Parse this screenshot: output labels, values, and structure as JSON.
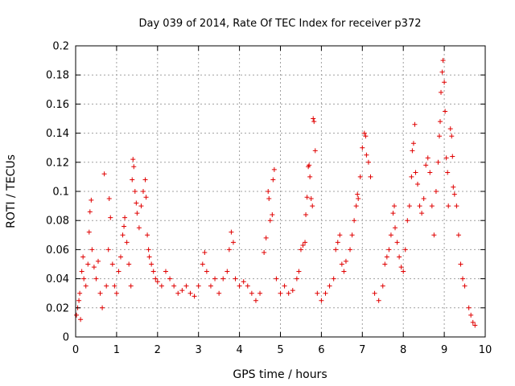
{
  "chart_data": {
    "type": "scatter",
    "title": "Day 039 of 2014, Rate Of TEC Index for receiver p372",
    "xlabel": "GPS time / hours",
    "ylabel": "ROTI / TECUs",
    "xlim": [
      0,
      10
    ],
    "ylim": [
      0,
      0.2
    ],
    "xticks": [
      0,
      1,
      2,
      3,
      4,
      5,
      6,
      7,
      8,
      9,
      10
    ],
    "yticks": [
      0,
      0.02,
      0.04,
      0.06,
      0.08,
      0.1,
      0.12,
      0.14,
      0.16,
      0.18,
      0.2
    ],
    "xtick_labels": [
      "0",
      "1",
      "2",
      "3",
      "4",
      "5",
      "6",
      "7",
      "8",
      "9",
      "10"
    ],
    "ytick_labels": [
      "0",
      "0.02",
      "0.04",
      "0.06",
      "0.08",
      "0.1",
      "0.12",
      "0.14",
      "0.16",
      "0.18",
      "0.2"
    ],
    "grid": true,
    "marker": "+",
    "color": "#e00000",
    "series": [
      {
        "name": "ROTI",
        "points": [
          [
            0.02,
            0.015
          ],
          [
            0.05,
            0.02
          ],
          [
            0.08,
            0.025
          ],
          [
            0.1,
            0.03
          ],
          [
            0.12,
            0.012
          ],
          [
            0.15,
            0.045
          ],
          [
            0.18,
            0.055
          ],
          [
            0.2,
            0.04
          ],
          [
            0.25,
            0.035
          ],
          [
            0.3,
            0.05
          ],
          [
            0.33,
            0.072
          ],
          [
            0.35,
            0.086
          ],
          [
            0.38,
            0.094
          ],
          [
            0.4,
            0.06
          ],
          [
            0.45,
            0.048
          ],
          [
            0.5,
            0.04
          ],
          [
            0.55,
            0.052
          ],
          [
            0.6,
            0.03
          ],
          [
            0.65,
            0.02
          ],
          [
            0.7,
            0.112
          ],
          [
            0.75,
            0.035
          ],
          [
            0.8,
            0.06
          ],
          [
            0.82,
            0.095
          ],
          [
            0.85,
            0.082
          ],
          [
            0.9,
            0.05
          ],
          [
            0.95,
            0.035
          ],
          [
            1.0,
            0.03
          ],
          [
            1.05,
            0.045
          ],
          [
            1.1,
            0.055
          ],
          [
            1.15,
            0.07
          ],
          [
            1.18,
            0.076
          ],
          [
            1.2,
            0.082
          ],
          [
            1.25,
            0.065
          ],
          [
            1.3,
            0.05
          ],
          [
            1.35,
            0.035
          ],
          [
            1.38,
            0.108
          ],
          [
            1.4,
            0.122
          ],
          [
            1.42,
            0.117
          ],
          [
            1.45,
            0.1
          ],
          [
            1.48,
            0.092
          ],
          [
            1.5,
            0.085
          ],
          [
            1.55,
            0.075
          ],
          [
            1.6,
            0.09
          ],
          [
            1.65,
            0.1
          ],
          [
            1.7,
            0.108
          ],
          [
            1.72,
            0.096
          ],
          [
            1.75,
            0.07
          ],
          [
            1.78,
            0.06
          ],
          [
            1.8,
            0.055
          ],
          [
            1.85,
            0.05
          ],
          [
            1.9,
            0.045
          ],
          [
            1.95,
            0.04
          ],
          [
            2.0,
            0.038
          ],
          [
            2.1,
            0.035
          ],
          [
            2.2,
            0.045
          ],
          [
            2.3,
            0.04
          ],
          [
            2.4,
            0.035
          ],
          [
            2.5,
            0.03
          ],
          [
            2.6,
            0.032
          ],
          [
            2.7,
            0.035
          ],
          [
            2.8,
            0.03
          ],
          [
            2.9,
            0.028
          ],
          [
            3.0,
            0.035
          ],
          [
            3.1,
            0.05
          ],
          [
            3.15,
            0.058
          ],
          [
            3.2,
            0.045
          ],
          [
            3.3,
            0.035
          ],
          [
            3.4,
            0.04
          ],
          [
            3.5,
            0.03
          ],
          [
            3.6,
            0.04
          ],
          [
            3.7,
            0.045
          ],
          [
            3.75,
            0.06
          ],
          [
            3.8,
            0.072
          ],
          [
            3.85,
            0.065
          ],
          [
            3.9,
            0.04
          ],
          [
            4.0,
            0.035
          ],
          [
            4.1,
            0.038
          ],
          [
            4.2,
            0.035
          ],
          [
            4.3,
            0.03
          ],
          [
            4.4,
            0.025
          ],
          [
            4.5,
            0.03
          ],
          [
            4.6,
            0.058
          ],
          [
            4.65,
            0.068
          ],
          [
            4.7,
            0.1
          ],
          [
            4.72,
            0.095
          ],
          [
            4.75,
            0.08
          ],
          [
            4.8,
            0.084
          ],
          [
            4.82,
            0.108
          ],
          [
            4.85,
            0.115
          ],
          [
            4.9,
            0.04
          ],
          [
            5.0,
            0.03
          ],
          [
            5.1,
            0.035
          ],
          [
            5.2,
            0.03
          ],
          [
            5.3,
            0.032
          ],
          [
            5.4,
            0.04
          ],
          [
            5.45,
            0.045
          ],
          [
            5.5,
            0.06
          ],
          [
            5.55,
            0.063
          ],
          [
            5.6,
            0.065
          ],
          [
            5.62,
            0.084
          ],
          [
            5.65,
            0.096
          ],
          [
            5.68,
            0.117
          ],
          [
            5.7,
            0.118
          ],
          [
            5.72,
            0.11
          ],
          [
            5.75,
            0.095
          ],
          [
            5.78,
            0.09
          ],
          [
            5.8,
            0.15
          ],
          [
            5.82,
            0.148
          ],
          [
            5.85,
            0.128
          ],
          [
            5.9,
            0.03
          ],
          [
            6.0,
            0.025
          ],
          [
            6.1,
            0.03
          ],
          [
            6.2,
            0.035
          ],
          [
            6.3,
            0.04
          ],
          [
            6.35,
            0.06
          ],
          [
            6.4,
            0.065
          ],
          [
            6.45,
            0.07
          ],
          [
            6.5,
            0.05
          ],
          [
            6.55,
            0.045
          ],
          [
            6.6,
            0.052
          ],
          [
            6.7,
            0.06
          ],
          [
            6.75,
            0.07
          ],
          [
            6.8,
            0.08
          ],
          [
            6.85,
            0.09
          ],
          [
            6.88,
            0.098
          ],
          [
            6.9,
            0.095
          ],
          [
            6.95,
            0.11
          ],
          [
            7.0,
            0.13
          ],
          [
            7.05,
            0.14
          ],
          [
            7.08,
            0.138
          ],
          [
            7.1,
            0.125
          ],
          [
            7.15,
            0.12
          ],
          [
            7.2,
            0.11
          ],
          [
            7.3,
            0.03
          ],
          [
            7.4,
            0.025
          ],
          [
            7.5,
            0.035
          ],
          [
            7.55,
            0.05
          ],
          [
            7.6,
            0.055
          ],
          [
            7.65,
            0.06
          ],
          [
            7.7,
            0.07
          ],
          [
            7.75,
            0.085
          ],
          [
            7.78,
            0.09
          ],
          [
            7.8,
            0.075
          ],
          [
            7.85,
            0.065
          ],
          [
            7.9,
            0.055
          ],
          [
            7.95,
            0.048
          ],
          [
            8.0,
            0.045
          ],
          [
            8.05,
            0.06
          ],
          [
            8.1,
            0.08
          ],
          [
            8.15,
            0.09
          ],
          [
            8.2,
            0.11
          ],
          [
            8.22,
            0.128
          ],
          [
            8.25,
            0.133
          ],
          [
            8.28,
            0.146
          ],
          [
            8.3,
            0.113
          ],
          [
            8.35,
            0.105
          ],
          [
            8.4,
            0.09
          ],
          [
            8.45,
            0.085
          ],
          [
            8.5,
            0.095
          ],
          [
            8.55,
            0.118
          ],
          [
            8.6,
            0.123
          ],
          [
            8.65,
            0.113
          ],
          [
            8.7,
            0.09
          ],
          [
            8.75,
            0.07
          ],
          [
            8.8,
            0.1
          ],
          [
            8.85,
            0.12
          ],
          [
            8.88,
            0.138
          ],
          [
            8.9,
            0.148
          ],
          [
            8.92,
            0.168
          ],
          [
            8.95,
            0.182
          ],
          [
            8.97,
            0.19
          ],
          [
            9.0,
            0.175
          ],
          [
            9.02,
            0.155
          ],
          [
            9.05,
            0.123
          ],
          [
            9.08,
            0.113
          ],
          [
            9.1,
            0.09
          ],
          [
            9.15,
            0.143
          ],
          [
            9.18,
            0.138
          ],
          [
            9.2,
            0.124
          ],
          [
            9.22,
            0.103
          ],
          [
            9.25,
            0.098
          ],
          [
            9.3,
            0.09
          ],
          [
            9.35,
            0.07
          ],
          [
            9.4,
            0.05
          ],
          [
            9.45,
            0.04
          ],
          [
            9.5,
            0.035
          ],
          [
            9.6,
            0.02
          ],
          [
            9.65,
            0.015
          ],
          [
            9.7,
            0.01
          ],
          [
            9.75,
            0.008
          ]
        ]
      }
    ]
  }
}
